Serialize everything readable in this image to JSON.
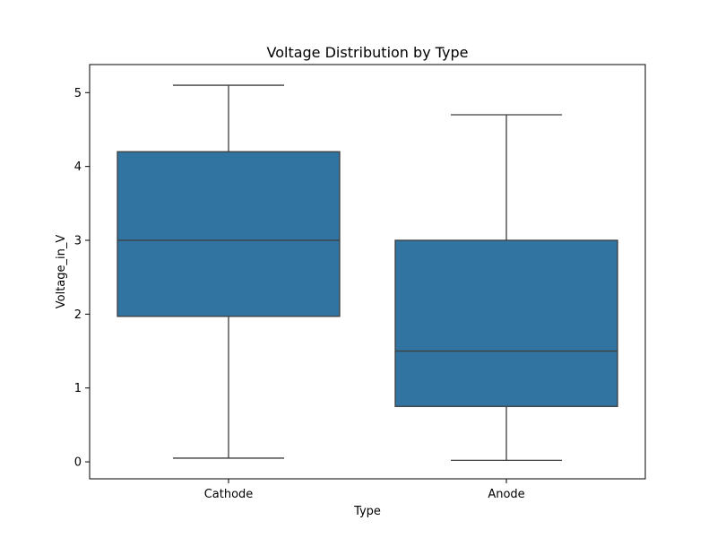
{
  "chart_data": {
    "type": "box",
    "title": "Voltage Distribution by Type",
    "xlabel": "Type",
    "ylabel": "Voltage_in_V",
    "ylim": [
      -0.23,
      5.38
    ],
    "yticks": [
      0,
      1,
      2,
      3,
      4,
      5
    ],
    "grid": false,
    "legend": "none",
    "box_color": "#3274a1",
    "line_color": "#3d3d3d",
    "categories": [
      "Cathode",
      "Anode"
    ],
    "boxes": [
      {
        "category": "Cathode",
        "whisker_low": 0.05,
        "q1": 1.97,
        "median": 3.0,
        "q3": 4.2,
        "whisker_high": 5.1
      },
      {
        "category": "Anode",
        "whisker_low": 0.02,
        "q1": 0.75,
        "median": 1.5,
        "q3": 3.0,
        "whisker_high": 4.7
      }
    ]
  }
}
